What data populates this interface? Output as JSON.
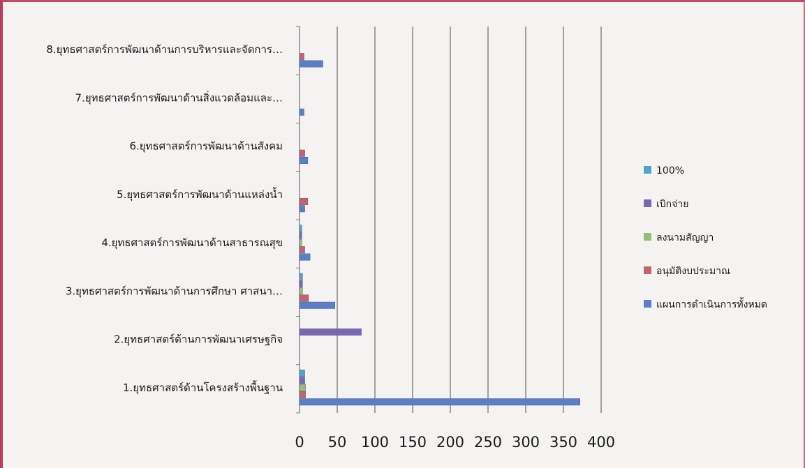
{
  "chart_data": {
    "type": "bar",
    "orientation": "horizontal",
    "categories": [
      "1.ยุทธศาสตร์ด้านโครงสร้างพื้นฐาน",
      "2.ยุทธศาสตร์ด้านการพัฒนาเศรษฐกิจ",
      "3.ยุทธศาสตร์การพัฒนาด้านการศึกษา ศาสนา…",
      "4.ยุทธศาสตร์การพัฒนาด้านสาธารณสุข",
      "5.ยุทธศาสตร์การพัฒนาด้านแหล่งน้ำ",
      "6.ยุทธศาสตร์การพัฒนาด้านสังคม",
      "7.ยุทธศาสตร์การพัฒนาด้านสิ่งแวดล้อมและ…",
      "8.ยุทธศาสตร์การพัฒนาด้านการบริหารและจัดการ…"
    ],
    "series": [
      {
        "name": "แผนการดำเนินการทั้งหมด",
        "color": "#5a7fc8",
        "values": [
          372,
          0,
          47,
          14,
          7,
          11,
          6,
          31
        ]
      },
      {
        "name": "อนุมัติงบประมาณ",
        "color": "#c0666b",
        "values": [
          8,
          0,
          12,
          7,
          11,
          7,
          0,
          6
        ]
      },
      {
        "name": "ลงนามสัญญา",
        "color": "#96bf72",
        "values": [
          8,
          0,
          4,
          3,
          0,
          0,
          0,
          0
        ]
      },
      {
        "name": "เบิกจ่าย",
        "color": "#7b67b0",
        "values": [
          7,
          82,
          4,
          3,
          0,
          0,
          0,
          0
        ]
      },
      {
        "name": "100%",
        "color": "#4aa8c6",
        "values": [
          7,
          0,
          4,
          3,
          0,
          0,
          0,
          0
        ]
      }
    ],
    "xlim": [
      0,
      400
    ],
    "xticks": [
      "0",
      "50",
      "100",
      "150",
      "200",
      "250",
      "300",
      "350",
      "400"
    ],
    "grid": "vertical",
    "legend_position": "right"
  }
}
